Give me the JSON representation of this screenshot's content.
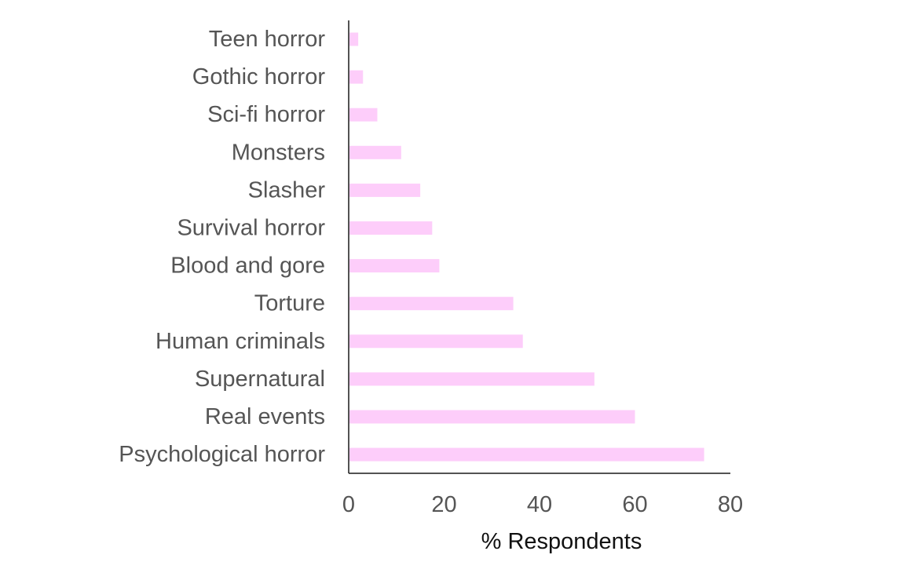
{
  "chart_data": {
    "type": "bar",
    "orientation": "horizontal",
    "categories": [
      "Teen horror",
      "Gothic horror",
      "Sci-fi horror",
      "Monsters",
      "Slasher",
      "Survival horror",
      "Blood and gore",
      "Torture",
      "Human criminals",
      "Supernatural",
      "Real events",
      "Psychological horror"
    ],
    "values": [
      2,
      3,
      6,
      11,
      15,
      17.5,
      19,
      34.5,
      36.5,
      51.5,
      60,
      74.5
    ],
    "xlabel": "% Respondents",
    "ylabel": "",
    "xlim": [
      0,
      80
    ],
    "xticks": [
      0,
      20,
      40,
      60,
      80
    ],
    "bar_color": "#fdcdfa",
    "axis_color": "#1a1a1a",
    "text_color": "#555555",
    "grid": false,
    "legend": "none"
  }
}
